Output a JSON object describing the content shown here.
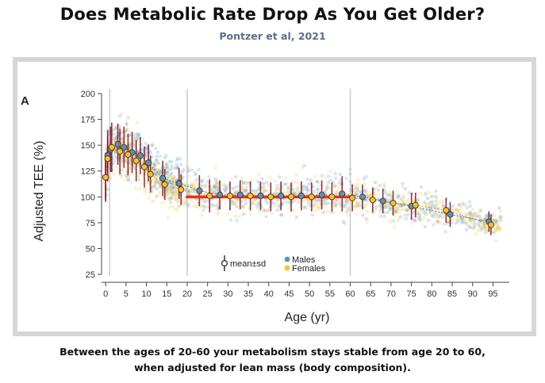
{
  "header": {
    "title": "Does Metabolic Rate Drop As You Get Older?",
    "subtitle": "Pontzer et al, 2021"
  },
  "caption": {
    "line1": "Between the ages of 20-60 your metabolism stays stable from age 20 to 60,",
    "line2": "when adjusted for lean mass (body composition)."
  },
  "colors": {
    "males": "#5b93b8",
    "females": "#f2c230",
    "errorbar": "#7a1030",
    "flatline": "#e8321e",
    "trend": "#d08a2a",
    "divider": "#c8c8c8"
  },
  "chart_data": {
    "type": "scatter",
    "panel_label": "A",
    "xlabel": "Age (yr)",
    "ylabel": "Adjusted TEE (%)",
    "xlim": [
      -1,
      99
    ],
    "ylim": [
      25,
      200
    ],
    "x_ticks": [
      0,
      5,
      10,
      15,
      20,
      25,
      30,
      35,
      40,
      45,
      50,
      55,
      60,
      65,
      70,
      75,
      80,
      85,
      90,
      95
    ],
    "y_ticks": [
      25,
      50,
      75,
      100,
      125,
      150,
      175,
      200
    ],
    "grid": false,
    "dividers_at_age": [
      1,
      20,
      60
    ],
    "legend": {
      "placement": "bottom-center",
      "meansd_label": "mean±sd",
      "males_label": "Males",
      "females_label": "Females"
    },
    "stable_segment": {
      "x": [
        20,
        60
      ],
      "y": 100
    },
    "series": [
      {
        "name": "Males",
        "points": [
          {
            "x": 0,
            "y": 119,
            "sd": 22
          },
          {
            "x": 0.5,
            "y": 140,
            "sd": 25
          },
          {
            "x": 1.2,
            "y": 146,
            "sd": 22
          },
          {
            "x": 3,
            "y": 151,
            "sd": 20
          },
          {
            "x": 4.5,
            "y": 148,
            "sd": 20
          },
          {
            "x": 6.5,
            "y": 143,
            "sd": 20
          },
          {
            "x": 8.5,
            "y": 140,
            "sd": 18
          },
          {
            "x": 10.5,
            "y": 133,
            "sd": 18
          },
          {
            "x": 14,
            "y": 118,
            "sd": 17
          },
          {
            "x": 18,
            "y": 113,
            "sd": 15
          },
          {
            "x": 23,
            "y": 106,
            "sd": 15
          },
          {
            "x": 28,
            "y": 102,
            "sd": 14
          },
          {
            "x": 33,
            "y": 102,
            "sd": 14
          },
          {
            "x": 38,
            "y": 101,
            "sd": 14
          },
          {
            "x": 43,
            "y": 101,
            "sd": 14
          },
          {
            "x": 48,
            "y": 101,
            "sd": 14
          },
          {
            "x": 53,
            "y": 102,
            "sd": 14
          },
          {
            "x": 58,
            "y": 103,
            "sd": 17
          },
          {
            "x": 63,
            "y": 100,
            "sd": 12
          },
          {
            "x": 68,
            "y": 96,
            "sd": 12
          },
          {
            "x": 75,
            "y": 91,
            "sd": 13
          },
          {
            "x": 84.5,
            "y": 83,
            "sd": 12
          },
          {
            "x": 94,
            "y": 76,
            "sd": 10
          }
        ]
      },
      {
        "name": "Females",
        "points": [
          {
            "x": 0,
            "y": 119,
            "sd": 24
          },
          {
            "x": 0.5,
            "y": 137,
            "sd": 22
          },
          {
            "x": 1.5,
            "y": 148,
            "sd": 24
          },
          {
            "x": 3.5,
            "y": 144,
            "sd": 22
          },
          {
            "x": 5.5,
            "y": 141,
            "sd": 20
          },
          {
            "x": 7.5,
            "y": 135,
            "sd": 20
          },
          {
            "x": 9.5,
            "y": 129,
            "sd": 20
          },
          {
            "x": 11,
            "y": 122,
            "sd": 18
          },
          {
            "x": 14.5,
            "y": 112,
            "sd": 15
          },
          {
            "x": 18.5,
            "y": 107,
            "sd": 15
          },
          {
            "x": 25.5,
            "y": 101,
            "sd": 16
          },
          {
            "x": 30.5,
            "y": 101,
            "sd": 14
          },
          {
            "x": 35.5,
            "y": 101,
            "sd": 14
          },
          {
            "x": 40.5,
            "y": 100,
            "sd": 14
          },
          {
            "x": 45.5,
            "y": 100,
            "sd": 14
          },
          {
            "x": 50.5,
            "y": 100,
            "sd": 14
          },
          {
            "x": 55.5,
            "y": 100,
            "sd": 14
          },
          {
            "x": 60.5,
            "y": 99,
            "sd": 13
          },
          {
            "x": 65.5,
            "y": 97,
            "sd": 12
          },
          {
            "x": 70.5,
            "y": 94,
            "sd": 12
          },
          {
            "x": 76,
            "y": 92,
            "sd": 12
          },
          {
            "x": 83.5,
            "y": 87,
            "sd": 12
          },
          {
            "x": 94.5,
            "y": 73,
            "sd": 10
          }
        ]
      }
    ]
  }
}
